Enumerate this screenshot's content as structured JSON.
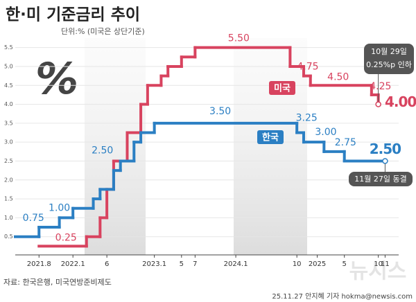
{
  "chart_data": {
    "type": "line",
    "step": "post",
    "title": "한·미 기준금리 추이",
    "subtitle": "단위:% (미국은 상단기준)",
    "icon": "%",
    "source": "자료: 한국은행, 미국연방준비제도",
    "credit": "25.11.27 안지혜 기자 hokma@newsis.com",
    "watermark": "뉴시스",
    "annotations": [
      {
        "series": 0,
        "lines": [
          "10월 29일",
          "0.25%p 인하"
        ]
      },
      {
        "series": 1,
        "lines": [
          "11월 27일 동결"
        ]
      }
    ],
    "xlim": [
      4.5,
      61
    ],
    "xticks": [
      {
        "value": 8,
        "label": "2021.8"
      },
      {
        "value": 13,
        "label": "2022.1"
      },
      {
        "value": 18,
        "label": "6"
      },
      {
        "value": 25,
        "label": "2023.1"
      },
      {
        "value": 29,
        "label": "5"
      },
      {
        "value": 31,
        "label": "7"
      },
      {
        "value": 37,
        "label": "2024.1"
      },
      {
        "value": 46,
        "label": "10"
      },
      {
        "value": 49,
        "label": "2025"
      },
      {
        "value": 53,
        "label": "5"
      },
      {
        "value": 58,
        "label": "10"
      },
      {
        "value": 59,
        "label": "11"
      }
    ],
    "ylim": [
      0,
      5.75
    ],
    "yticks": [
      0.5,
      {
        "value": 1,
        "label": "1.0"
      },
      1.5,
      {
        "value": 2,
        "label": "2.0"
      },
      2.5,
      {
        "value": 3,
        "label": "3.0"
      },
      3.5,
      {
        "value": 4,
        "label": "4.0"
      },
      4.5,
      {
        "value": 5,
        "label": "5.0"
      },
      5.5
    ],
    "grid": true,
    "series": [
      {
        "name": "미국",
        "color": "#d8435f",
        "x": [
          8,
          15,
          17,
          18,
          19,
          21,
          23,
          24,
          26,
          27,
          29,
          31,
          45,
          47,
          48,
          57,
          58
        ],
        "values": [
          0.25,
          0.5,
          1.0,
          1.75,
          2.5,
          3.25,
          4.0,
          4.5,
          4.75,
          5.0,
          5.25,
          5.5,
          5.0,
          4.75,
          4.5,
          4.25,
          4.0
        ],
        "value_labels": [
          "0.25",
          null,
          null,
          null,
          null,
          null,
          null,
          null,
          null,
          null,
          null,
          "5.50",
          null,
          "4.75",
          "4.50",
          "4.25",
          "4.00"
        ]
      },
      {
        "name": "한국",
        "color": "#2b7fc3",
        "x": [
          4.5,
          8,
          11,
          13,
          16,
          17,
          19,
          20,
          22,
          23,
          25,
          46,
          47,
          50,
          53,
          59
        ],
        "values": [
          0.5,
          0.75,
          1.0,
          1.25,
          1.5,
          1.75,
          2.25,
          2.5,
          3.0,
          3.25,
          3.5,
          3.25,
          3.0,
          2.75,
          2.5,
          2.5
        ],
        "value_labels": [
          null,
          "0.75",
          "1.00",
          null,
          null,
          null,
          null,
          "2.50",
          null,
          null,
          "3.50",
          "3.25",
          "3.00",
          "2.75",
          null,
          "2.50"
        ]
      }
    ]
  }
}
